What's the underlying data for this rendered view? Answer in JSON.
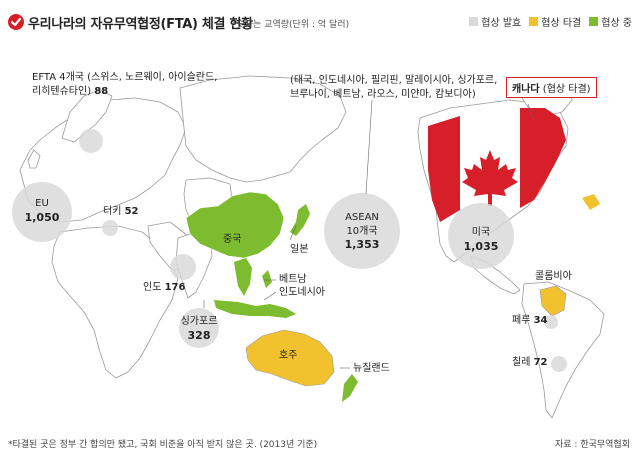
{
  "title": "우리나라의 자유무역협정(FTA) 체결 현황",
  "note": "*숫자는 교역량(단위 : 억 달러)",
  "legend": [
    {
      "label": "협상 발효",
      "color": "#d9d9d9"
    },
    {
      "label": "협상 타결",
      "color": "#f2c12e"
    },
    {
      "label": "협상 중",
      "color": "#7dbb2f"
    }
  ],
  "labels": {
    "efta_line1": "EFTA 4개국 (스위스, 노르웨이, 아이슬란드,",
    "efta_line2": "리히텐슈타인)",
    "efta_value": "88",
    "eu_name": "EU",
    "eu_value": "1,050",
    "turkey_name": "터키",
    "turkey_value": "52",
    "india_name": "인도",
    "india_value": "176",
    "singapore_name": "싱가포르",
    "singapore_value": "328",
    "china": "중국",
    "japan": "일본",
    "vietnam": "베트남",
    "indonesia": "인도네시아",
    "australia": "호주",
    "newzealand": "뉴질랜드",
    "asean_list_line1": "(태국, 인도네시아, 필리핀, 말레이시아, 싱가포르,",
    "asean_list_line2": "브루나이, 베트남, 라오스, 미얀마, 캄보디아)",
    "asean_name": "ASEAN",
    "asean_count": "10개국",
    "asean_value": "1,353",
    "usa_name": "미국",
    "usa_value": "1,035",
    "canada_name": "캐나다",
    "canada_status": "(협상 타결)",
    "colombia": "콜롬비아",
    "peru_name": "페루",
    "peru_value": "34",
    "chile_name": "칠레",
    "chile_value": "72"
  },
  "footnote": "*타결된 곳은 정부 간 합의만 됐고, 국회 비준을 아직 받지 않은 곳. (2013년 기준)",
  "source": "자료 : 한국무역협회",
  "colors": {
    "accent": "#d71f2a",
    "land": "#ffffff",
    "land_stroke": "#9a9a9a",
    "effective": "#d9d9d9",
    "concluded": "#f2c12e",
    "negotiating": "#7dbb2f",
    "canada_red": "#d71f2a"
  }
}
